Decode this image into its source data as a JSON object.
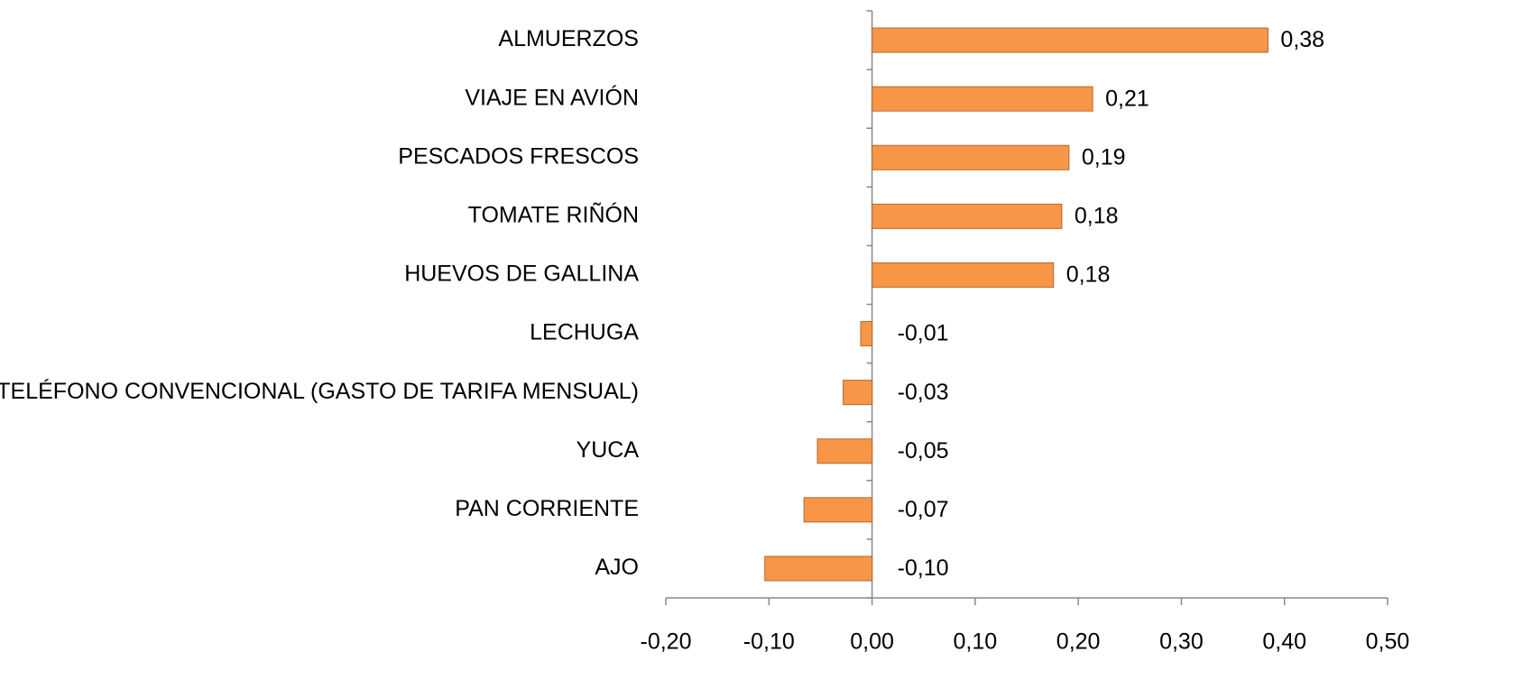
{
  "chart_data": {
    "type": "barh",
    "categories": [
      "ALMUERZOS",
      "VIAJE EN AVIÓN",
      "PESCADOS FRESCOS",
      "TOMATE RIÑÓN",
      "HUEVOS DE GALLINA",
      "LECHUGA",
      "TELÉFONO CONVENCIONAL (GASTO DE TARIFA MENSUAL)",
      "YUCA",
      "PAN CORRIENTE",
      "AJO"
    ],
    "values": [
      0.384,
      0.214,
      0.191,
      0.184,
      0.176,
      -0.011,
      -0.028,
      -0.053,
      -0.066,
      -0.104
    ],
    "value_labels": [
      "0,38",
      "0,21",
      "0,19",
      "0,18",
      "0,18",
      "-0,01",
      "-0,03",
      "-0,05",
      "-0,07",
      "-0,10"
    ],
    "color": "#f79646",
    "xlim": [
      -0.2,
      0.5
    ],
    "xticks": [
      {
        "value": -0.2,
        "label": "-0,20"
      },
      {
        "value": -0.1,
        "label": "-0,10"
      },
      {
        "value": 0,
        "label": "0,00"
      },
      {
        "value": 0.1,
        "label": "0,10"
      },
      {
        "value": 0.2,
        "label": "0,20"
      },
      {
        "value": 0.3,
        "label": "0,30"
      },
      {
        "value": 0.4,
        "label": "0,40"
      },
      {
        "value": 0.5,
        "label": "0,50"
      }
    ]
  }
}
